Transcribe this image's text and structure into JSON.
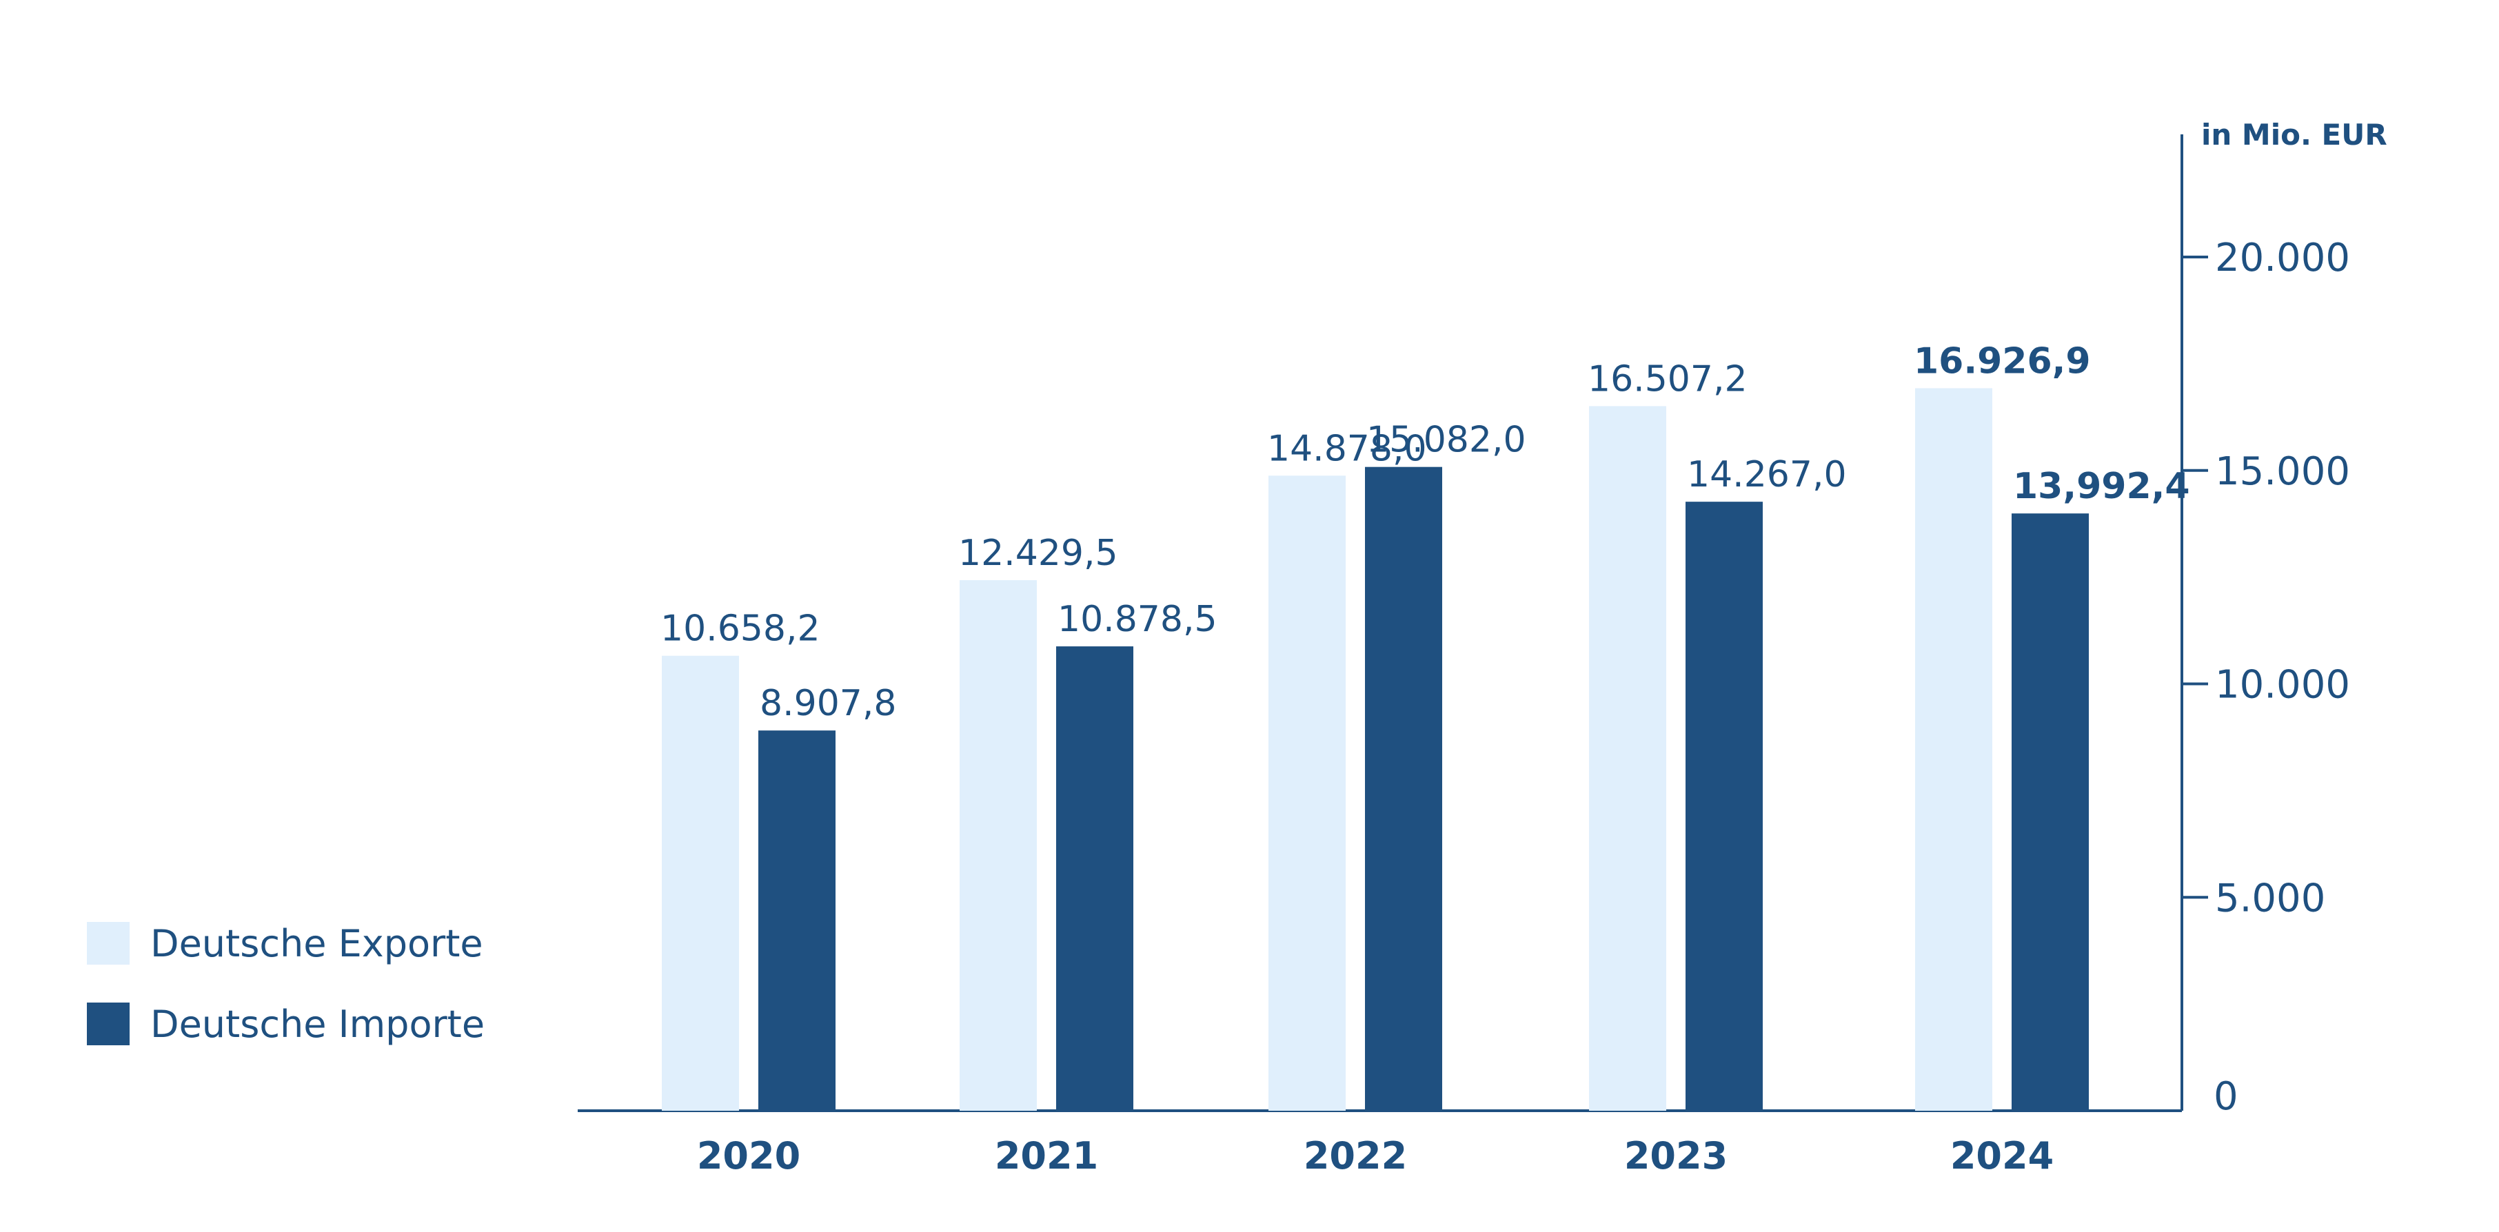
{
  "chart_data": {
    "type": "bar",
    "unit_label": "in Mio. EUR",
    "categories": [
      "2020",
      "2021",
      "2022",
      "2023",
      "2024"
    ],
    "series": [
      {
        "name": "Deutsche Exporte",
        "color": "#e0effc",
        "values": [
          10658.2,
          12429.5,
          14878.0,
          16507.2,
          16926.9
        ],
        "labels": [
          "10.658,2",
          "12.429,5",
          "14.878,0",
          "16.507,2",
          "16.926,9"
        ]
      },
      {
        "name": "Deutsche Importe",
        "color": "#1f5080",
        "values": [
          8907.8,
          10878.5,
          15082.0,
          14267.0,
          13992.4
        ],
        "labels": [
          "8.907,8",
          "10.878,5",
          "15.082,0",
          "14.267,0",
          "13,992,4"
        ]
      }
    ],
    "bold_category": "2024",
    "y_axis": {
      "position": "right",
      "ylim": [
        0,
        22000
      ],
      "ticks": [
        0,
        5000,
        10000,
        15000,
        20000
      ],
      "tick_labels": [
        "0",
        "5.000",
        "10.000",
        "15.000",
        "20.000"
      ]
    },
    "legend": {
      "placement": "bottom-left"
    },
    "grid": false,
    "colors": {
      "axis": "#1f5080",
      "text": "#1f5080"
    }
  }
}
